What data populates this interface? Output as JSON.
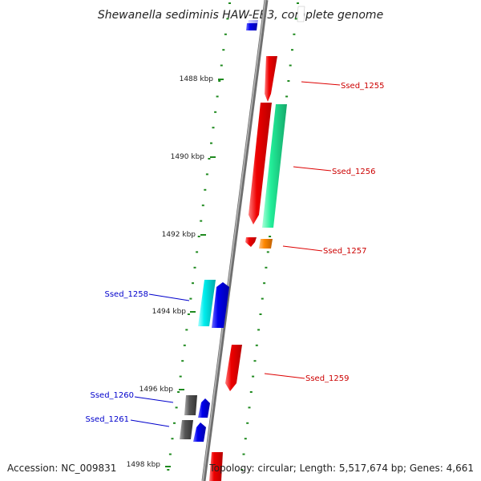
{
  "title": "Shewanella sediminis HAW-EB3, complete genome",
  "footer": {
    "accession": "Accession: NC_009831",
    "topology": "Topology: circular; Length: 5,517,674 bp; Genes: 4,661"
  },
  "ticks": [
    {
      "label": "1488 kbp"
    },
    {
      "label": "1490 kbp"
    },
    {
      "label": "1492 kbp"
    },
    {
      "label": "1494 kbp"
    },
    {
      "label": "1496 kbp"
    },
    {
      "label": "1498 kbp"
    }
  ],
  "genes": [
    {
      "id": "Ssed_1255",
      "color": "#ee0000"
    },
    {
      "id": "Ssed_1256",
      "color": "#ee0000"
    },
    {
      "id": "Ssed_1257",
      "color": "#ee0000"
    },
    {
      "id": "Ssed_1258",
      "color": "#0000cc"
    },
    {
      "id": "Ssed_1259",
      "color": "#ee0000"
    },
    {
      "id": "Ssed_1260",
      "color": "#0000cc"
    },
    {
      "id": "Ssed_1261",
      "color": "#0000cc"
    }
  ],
  "colors": {
    "backbone": "#8a8a8a",
    "tick": "#1f8a1f",
    "forward": "#ee0000",
    "reverse": "#0000ee",
    "aqua": "#22ee99",
    "cyan": "#00eeee",
    "orange": "#ff8800",
    "gray": "#555555"
  }
}
